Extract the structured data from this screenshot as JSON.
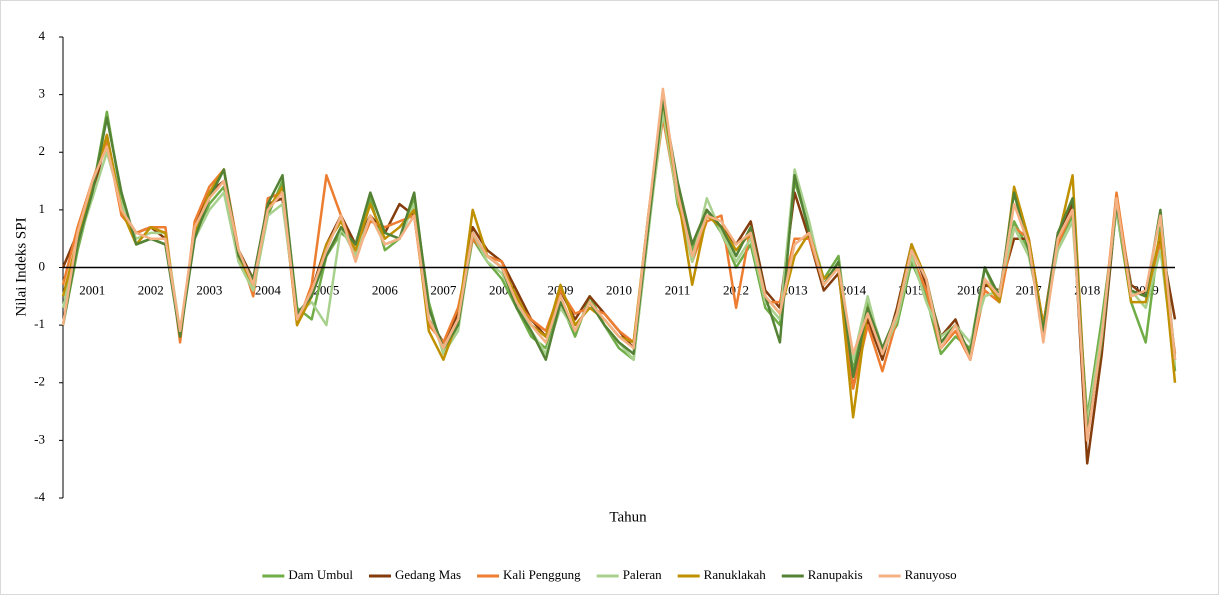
{
  "chart_data": {
    "type": "line",
    "y_label": "Nilai Indeks SPI",
    "x_label": "Tahun",
    "x": [
      2001,
      2001.25,
      2001.5,
      2001.75,
      2002,
      2002.25,
      2002.5,
      2002.75,
      2003,
      2003.25,
      2003.5,
      2003.75,
      2004,
      2004.25,
      2004.5,
      2004.75,
      2005,
      2005.25,
      2005.5,
      2005.75,
      2006,
      2006.25,
      2006.5,
      2006.75,
      2007,
      2007.25,
      2007.5,
      2007.75,
      2008,
      2008.25,
      2008.5,
      2008.75,
      2009,
      2009.25,
      2009.5,
      2009.75,
      2010,
      2010.25,
      2010.5,
      2010.75,
      2011,
      2011.25,
      2011.5,
      2011.75,
      2012,
      2012.25,
      2012.5,
      2012.75,
      2013,
      2013.25,
      2013.5,
      2013.75,
      2014,
      2014.25,
      2014.5,
      2014.75,
      2015,
      2015.25,
      2015.5,
      2015.75,
      2016,
      2016.25,
      2016.5,
      2016.75,
      2017,
      2017.25,
      2017.5,
      2017.75,
      2018,
      2018.25,
      2018.5,
      2018.75,
      2019,
      2019.25,
      2019.5,
      2019.75,
      2020
    ],
    "xlim": [
      2001,
      2020
    ],
    "xticks": [
      {
        "value": 2001.5,
        "label": "2001"
      },
      {
        "value": 2002.5,
        "label": "2002"
      },
      {
        "value": 2003.5,
        "label": "2003"
      },
      {
        "value": 2004.5,
        "label": "2004"
      },
      {
        "value": 2005.5,
        "label": "2005"
      },
      {
        "value": 2006.5,
        "label": "2006"
      },
      {
        "value": 2007.5,
        "label": "2007"
      },
      {
        "value": 2008.5,
        "label": "2008"
      },
      {
        "value": 2009.5,
        "label": "2009"
      },
      {
        "value": 2010.5,
        "label": "2010"
      },
      {
        "value": 2011.5,
        "label": "2011"
      },
      {
        "value": 2012.5,
        "label": "2012"
      },
      {
        "value": 2013.5,
        "label": "2013"
      },
      {
        "value": 2014.5,
        "label": "2014"
      },
      {
        "value": 2015.5,
        "label": "2015"
      },
      {
        "value": 2016.5,
        "label": "2016"
      },
      {
        "value": 2017.5,
        "label": "2017"
      },
      {
        "value": 2018.5,
        "label": "2018"
      },
      {
        "value": 2019.5,
        "label": "2019"
      }
    ],
    "ylim": [
      -4,
      4
    ],
    "yticks": [
      -4,
      -3,
      -2,
      -1,
      0,
      1,
      2,
      3,
      4
    ],
    "grid": false,
    "legend": "bottom",
    "series": [
      {
        "name": "Dam Umbul",
        "color": "#70ad47",
        "values": [
          -1.0,
          0.3,
          1.3,
          2.7,
          1.2,
          0.4,
          0.5,
          0.4,
          -1.1,
          0.5,
          1.1,
          1.4,
          0.1,
          -0.4,
          0.9,
          1.5,
          -0.7,
          -0.9,
          0.2,
          0.6,
          0.4,
          1.2,
          0.3,
          0.5,
          1.2,
          -0.6,
          -1.5,
          -1.0,
          0.5,
          0.1,
          -0.2,
          -0.7,
          -1.2,
          -1.4,
          -0.6,
          -1.2,
          -0.5,
          -1.0,
          -1.4,
          -1.6,
          0.6,
          2.9,
          1.1,
          0.3,
          1.0,
          0.6,
          0.0,
          0.4,
          -0.7,
          -1.0,
          1.5,
          0.7,
          -0.2,
          0.2,
          -1.8,
          -0.6,
          -1.4,
          -1.0,
          0.1,
          -0.5,
          -1.5,
          -1.2,
          -1.4,
          0.0,
          -0.6,
          0.8,
          0.3,
          -1.1,
          0.4,
          0.9,
          -2.6,
          -0.9,
          1.0,
          -0.6,
          -1.3,
          0.7,
          -1.8
        ]
      },
      {
        "name": "Gedang Mas",
        "color": "#843c0c",
        "values": [
          0.0,
          0.6,
          1.2,
          2.3,
          1.0,
          0.6,
          0.7,
          0.5,
          -1.2,
          0.7,
          1.3,
          1.5,
          0.3,
          -0.2,
          1.1,
          1.2,
          -0.9,
          -0.4,
          0.4,
          0.9,
          0.4,
          0.9,
          0.6,
          1.1,
          0.9,
          -0.9,
          -1.3,
          -0.8,
          0.7,
          0.3,
          0.1,
          -0.4,
          -0.9,
          -1.2,
          -0.4,
          -0.9,
          -0.5,
          -0.8,
          -1.1,
          -1.4,
          0.9,
          2.9,
          1.4,
          0.4,
          1.0,
          0.7,
          0.4,
          0.8,
          -0.4,
          -0.7,
          1.3,
          0.5,
          -0.4,
          -0.1,
          -2.1,
          -0.9,
          -1.6,
          -0.7,
          0.4,
          -0.3,
          -1.2,
          -0.9,
          -1.6,
          -0.3,
          -0.4,
          0.5,
          0.5,
          -1.0,
          0.6,
          1.1,
          -3.4,
          -1.5,
          1.1,
          -0.3,
          -0.5,
          0.5,
          -0.9
        ]
      },
      {
        "name": "Kali Penggung",
        "color": "#ed7d31",
        "values": [
          -0.3,
          0.7,
          1.5,
          2.2,
          0.9,
          0.6,
          0.7,
          0.7,
          -1.3,
          0.8,
          1.4,
          1.7,
          0.3,
          -0.5,
          1.2,
          1.3,
          -1.0,
          -0.3,
          1.6,
          0.9,
          0.2,
          0.8,
          0.7,
          0.8,
          0.9,
          -1.0,
          -1.3,
          -0.7,
          0.5,
          0.2,
          0.1,
          -0.6,
          -0.9,
          -1.1,
          -0.4,
          -0.8,
          -0.7,
          -0.8,
          -1.1,
          -1.3,
          0.7,
          2.6,
          1.2,
          0.1,
          0.8,
          0.9,
          -0.7,
          0.7,
          -0.6,
          -0.6,
          0.5,
          0.5,
          -0.3,
          0.0,
          -2.1,
          -1.0,
          -1.8,
          -0.9,
          0.2,
          -0.4,
          -1.4,
          -1.1,
          -1.6,
          -0.4,
          -0.6,
          0.7,
          0.5,
          -1.2,
          0.4,
          1.0,
          -3.0,
          -1.2,
          1.3,
          -0.4,
          -0.5,
          0.4,
          -1.5
        ]
      },
      {
        "name": "Paleran",
        "color": "#a9d18e",
        "values": [
          -0.7,
          0.4,
          1.2,
          2.0,
          1.1,
          0.5,
          0.6,
          0.6,
          -1.1,
          0.5,
          1.0,
          1.3,
          0.1,
          -0.4,
          0.9,
          1.1,
          -0.8,
          -0.6,
          -1.0,
          0.7,
          0.2,
          0.9,
          0.4,
          0.5,
          1.1,
          -0.7,
          -1.5,
          -1.1,
          0.6,
          0.1,
          -0.1,
          -0.6,
          -1.1,
          -1.5,
          -0.7,
          -1.1,
          -0.6,
          -1.0,
          -1.3,
          -1.6,
          0.6,
          2.7,
          1.2,
          0.1,
          1.2,
          0.6,
          0.1,
          0.5,
          -0.6,
          -0.9,
          1.7,
          0.8,
          -0.3,
          0.1,
          -1.6,
          -0.5,
          -1.5,
          -0.9,
          0.2,
          -0.6,
          -1.2,
          -1.0,
          -1.3,
          -0.5,
          -0.4,
          0.7,
          0.2,
          -1.0,
          0.3,
          0.8,
          -2.7,
          -1.1,
          1.0,
          -0.4,
          -0.7,
          0.3,
          -1.7
        ]
      },
      {
        "name": "Ranuklakah",
        "color": "#bf9000",
        "values": [
          -0.5,
          0.5,
          1.4,
          2.3,
          1.0,
          0.4,
          0.7,
          0.6,
          -1.2,
          0.6,
          1.3,
          1.7,
          0.2,
          -0.3,
          1.0,
          1.4,
          -1.0,
          -0.5,
          0.4,
          0.8,
          0.3,
          1.1,
          0.5,
          0.7,
          1.0,
          -1.1,
          -1.6,
          -0.9,
          1.0,
          0.2,
          0.0,
          -0.5,
          -1.0,
          -1.2,
          -0.3,
          -1.0,
          -0.7,
          -0.9,
          -1.2,
          -1.3,
          0.9,
          2.9,
          1.3,
          -0.3,
          0.9,
          0.7,
          0.3,
          0.6,
          -0.5,
          -0.8,
          0.2,
          0.6,
          -0.2,
          0.0,
          -2.6,
          -0.7,
          -1.5,
          -0.8,
          0.4,
          -0.2,
          -1.3,
          -1.0,
          -1.5,
          -0.2,
          -0.6,
          1.4,
          0.5,
          -1.0,
          0.5,
          1.6,
          -2.9,
          -1.3,
          1.2,
          -0.6,
          -0.6,
          0.6,
          -2.0
        ]
      },
      {
        "name": "Ranupakis",
        "color": "#548235",
        "values": [
          -1.0,
          0.4,
          1.3,
          2.6,
          1.3,
          0.4,
          0.5,
          0.4,
          -1.2,
          0.5,
          1.2,
          1.7,
          0.2,
          -0.2,
          1.1,
          1.6,
          -0.8,
          -0.5,
          0.2,
          0.7,
          0.4,
          1.3,
          0.6,
          0.5,
          1.3,
          -0.7,
          -1.4,
          -1.0,
          0.6,
          0.2,
          0.0,
          -0.7,
          -1.1,
          -1.6,
          -0.6,
          -1.1,
          -0.6,
          -1.0,
          -1.3,
          -1.5,
          0.7,
          2.9,
          1.5,
          0.4,
          1.0,
          0.7,
          0.2,
          0.7,
          -0.5,
          -1.3,
          1.6,
          0.6,
          -0.3,
          0.1,
          -1.9,
          -0.7,
          -1.4,
          -0.8,
          0.3,
          -0.2,
          -1.3,
          -1.0,
          -1.5,
          0.0,
          -0.5,
          1.3,
          0.3,
          -1.1,
          0.6,
          1.2,
          -2.9,
          -1.3,
          1.1,
          -0.4,
          -0.5,
          1.0,
          -1.6
        ]
      },
      {
        "name": "Ranuyoso",
        "color": "#f4b183",
        "values": [
          -1.0,
          0.6,
          1.5,
          2.1,
          1.0,
          0.6,
          0.5,
          0.5,
          -1.1,
          0.7,
          1.2,
          1.5,
          0.3,
          -0.3,
          1.0,
          1.3,
          -0.9,
          -0.4,
          0.3,
          0.9,
          0.1,
          0.9,
          0.4,
          0.5,
          0.9,
          -0.9,
          -1.4,
          -0.9,
          0.6,
          0.2,
          0.0,
          -0.6,
          -1.0,
          -1.3,
          -0.5,
          -1.1,
          -0.6,
          -0.9,
          -1.2,
          -1.4,
          0.9,
          3.1,
          1.3,
          0.2,
          0.9,
          0.8,
          0.4,
          0.6,
          -0.5,
          -0.8,
          0.4,
          0.6,
          -0.3,
          0.0,
          -1.5,
          -0.8,
          -1.5,
          -0.8,
          0.3,
          -0.2,
          -1.4,
          -1.0,
          -1.6,
          -0.2,
          -0.5,
          1.1,
          0.4,
          -1.3,
          0.5,
          1.0,
          -3.0,
          -1.2,
          1.2,
          -0.5,
          -0.4,
          0.9,
          -1.6
        ]
      }
    ]
  }
}
